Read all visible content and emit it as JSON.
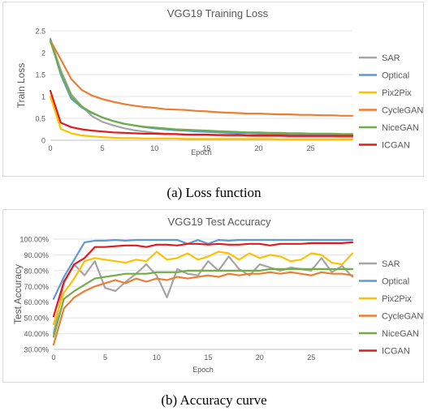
{
  "charts": [
    {
      "id": "loss",
      "type": "line",
      "title": "VGG19 Training Loss",
      "xlabel": "Epoch",
      "ylabel": "Train  Loss",
      "x": [
        0,
        1,
        2,
        3,
        4,
        5,
        6,
        7,
        8,
        9,
        10,
        11,
        12,
        13,
        14,
        15,
        16,
        17,
        18,
        19,
        20,
        21,
        22,
        23,
        24,
        25,
        26,
        27,
        28,
        29
      ],
      "xlim": [
        0,
        29
      ],
      "xticks": [
        0,
        5,
        10,
        15,
        20,
        25
      ],
      "xtick_labels": [
        "0",
        "5",
        "10",
        "15",
        "20",
        "25"
      ],
      "ylim": [
        0,
        2.5
      ],
      "yticks": [
        0,
        0.5,
        1,
        1.5,
        2,
        2.5
      ],
      "ytick_labels": [
        "0",
        "0.5",
        "1",
        "1.5",
        "2",
        "2.5"
      ],
      "grid": true,
      "legend_position": "right",
      "series": [
        {
          "name": "SAR",
          "color": "#a5a5a5",
          "values": [
            2.32,
            1.6,
            1.05,
            0.78,
            0.55,
            0.42,
            0.34,
            0.28,
            0.23,
            0.2,
            0.17,
            0.15,
            0.14,
            0.13,
            0.12,
            0.12,
            0.11,
            0.1,
            0.1,
            0.1,
            0.09,
            0.09,
            0.09,
            0.08,
            0.08,
            0.08,
            0.08,
            0.08,
            0.07,
            0.07
          ]
        },
        {
          "name": "Optical",
          "color": "#5b9bd5",
          "values": [
            2.3,
            1.5,
            0.95,
            0.75,
            0.62,
            0.52,
            0.44,
            0.38,
            0.34,
            0.3,
            0.27,
            0.25,
            0.23,
            0.22,
            0.2,
            0.19,
            0.18,
            0.17,
            0.16,
            0.16,
            0.15,
            0.15,
            0.14,
            0.14,
            0.13,
            0.13,
            0.13,
            0.12,
            0.12,
            0.12
          ]
        },
        {
          "name": "Pix2Pix",
          "color": "#ffc000",
          "values": [
            1.0,
            0.26,
            0.16,
            0.11,
            0.09,
            0.07,
            0.06,
            0.05,
            0.05,
            0.04,
            0.04,
            0.04,
            0.04,
            0.03,
            0.03,
            0.03,
            0.03,
            0.03,
            0.03,
            0.03,
            0.03,
            0.03,
            0.02,
            0.02,
            0.02,
            0.02,
            0.02,
            0.02,
            0.02,
            0.02
          ]
        },
        {
          "name": "CycleGAN",
          "color": "#ed7d31",
          "values": [
            2.28,
            1.85,
            1.4,
            1.15,
            1.02,
            0.94,
            0.88,
            0.83,
            0.79,
            0.76,
            0.74,
            0.71,
            0.7,
            0.69,
            0.67,
            0.66,
            0.64,
            0.63,
            0.62,
            0.61,
            0.61,
            0.6,
            0.59,
            0.59,
            0.58,
            0.58,
            0.57,
            0.57,
            0.56,
            0.56
          ]
        },
        {
          "name": "NiceGAN",
          "color": "#70ad47",
          "values": [
            2.26,
            1.55,
            1.0,
            0.77,
            0.63,
            0.52,
            0.44,
            0.38,
            0.34,
            0.31,
            0.29,
            0.27,
            0.25,
            0.24,
            0.23,
            0.22,
            0.21,
            0.2,
            0.19,
            0.18,
            0.18,
            0.17,
            0.17,
            0.16,
            0.16,
            0.15,
            0.15,
            0.15,
            0.14,
            0.14
          ]
        },
        {
          "name": "ICGAN",
          "color": "#e31a1c",
          "values": [
            1.13,
            0.4,
            0.3,
            0.25,
            0.22,
            0.2,
            0.18,
            0.17,
            0.16,
            0.15,
            0.15,
            0.14,
            0.14,
            0.13,
            0.13,
            0.13,
            0.12,
            0.12,
            0.12,
            0.11,
            0.11,
            0.11,
            0.11,
            0.1,
            0.1,
            0.1,
            0.1,
            0.1,
            0.1,
            0.1
          ]
        }
      ]
    },
    {
      "id": "accuracy",
      "type": "line",
      "title": "VGG19 Test Accuracy",
      "xlabel": "Epoch",
      "ylabel": "Test  Accuracy",
      "x": [
        0,
        1,
        2,
        3,
        4,
        5,
        6,
        7,
        8,
        9,
        10,
        11,
        12,
        13,
        14,
        15,
        16,
        17,
        18,
        19,
        20,
        21,
        22,
        23,
        24,
        25,
        26,
        27,
        28,
        29
      ],
      "xlim": [
        0,
        29
      ],
      "xticks": [
        0,
        5,
        10,
        15,
        20,
        25
      ],
      "xtick_labels": [
        "0",
        "5",
        "10",
        "15",
        "20",
        "25"
      ],
      "ylim": [
        30,
        100
      ],
      "yticks": [
        30,
        40,
        50,
        60,
        70,
        80,
        90,
        100
      ],
      "ytick_labels": [
        "30.00%",
        "40.00%",
        "50.00%",
        "60.00%",
        "70.00%",
        "80.00%",
        "90.00%",
        "100.00%"
      ],
      "grid": true,
      "legend_position": "right",
      "series": [
        {
          "name": "SAR",
          "color": "#a5a5a5",
          "values": [
            40,
            72,
            84,
            77,
            86,
            69,
            67,
            73,
            78,
            84,
            77,
            63,
            81,
            78,
            77,
            86,
            80,
            89,
            81,
            77,
            84,
            82,
            80,
            82,
            81,
            80,
            88,
            79,
            83,
            76
          ]
        },
        {
          "name": "Optical",
          "color": "#5b9bd5",
          "values": [
            62,
            76,
            87,
            98,
            99,
            99,
            99.5,
            99,
            99.5,
            99.5,
            99.5,
            99.5,
            99.5,
            97,
            99.5,
            97,
            99.5,
            99,
            99.5,
            99.5,
            99.5,
            99.5,
            99.5,
            99.5,
            99.5,
            99.5,
            99.5,
            99.5,
            99.5,
            99.5
          ]
        },
        {
          "name": "Pix2Pix",
          "color": "#ffc000",
          "values": [
            46,
            66,
            75,
            86,
            88,
            87,
            86,
            85,
            87,
            86,
            92,
            87,
            88,
            91,
            87,
            89,
            92,
            91,
            87,
            91,
            88,
            90,
            89,
            86,
            87,
            91,
            90,
            85,
            84,
            91
          ]
        },
        {
          "name": "CycleGAN",
          "color": "#ed7d31",
          "values": [
            33,
            56,
            63,
            67,
            70,
            72,
            74,
            72,
            75,
            73,
            75,
            74,
            76,
            75,
            76,
            77,
            76,
            78,
            77,
            78,
            78,
            79,
            78,
            79,
            78,
            77,
            79,
            78,
            78,
            77
          ]
        },
        {
          "name": "NiceGAN",
          "color": "#70ad47",
          "values": [
            38,
            62,
            67,
            71,
            75,
            76,
            77,
            78,
            78,
            78,
            79,
            79,
            79,
            80,
            80,
            80,
            80,
            80,
            80,
            80,
            80,
            81,
            81,
            81,
            81,
            81,
            81,
            81,
            81,
            81
          ]
        },
        {
          "name": "ICGAN",
          "color": "#e31a1c",
          "values": [
            51,
            73,
            84,
            88,
            95,
            95,
            95.5,
            96,
            96,
            95,
            96.5,
            96.5,
            96,
            97,
            97,
            96.5,
            97,
            96.5,
            96.5,
            97,
            97,
            96,
            97,
            97,
            97,
            97.5,
            97.5,
            97.5,
            97.5,
            98
          ]
        }
      ]
    }
  ],
  "captions": {
    "a": "(a)  Loss function",
    "b": "(b)  Accuracy curve"
  }
}
